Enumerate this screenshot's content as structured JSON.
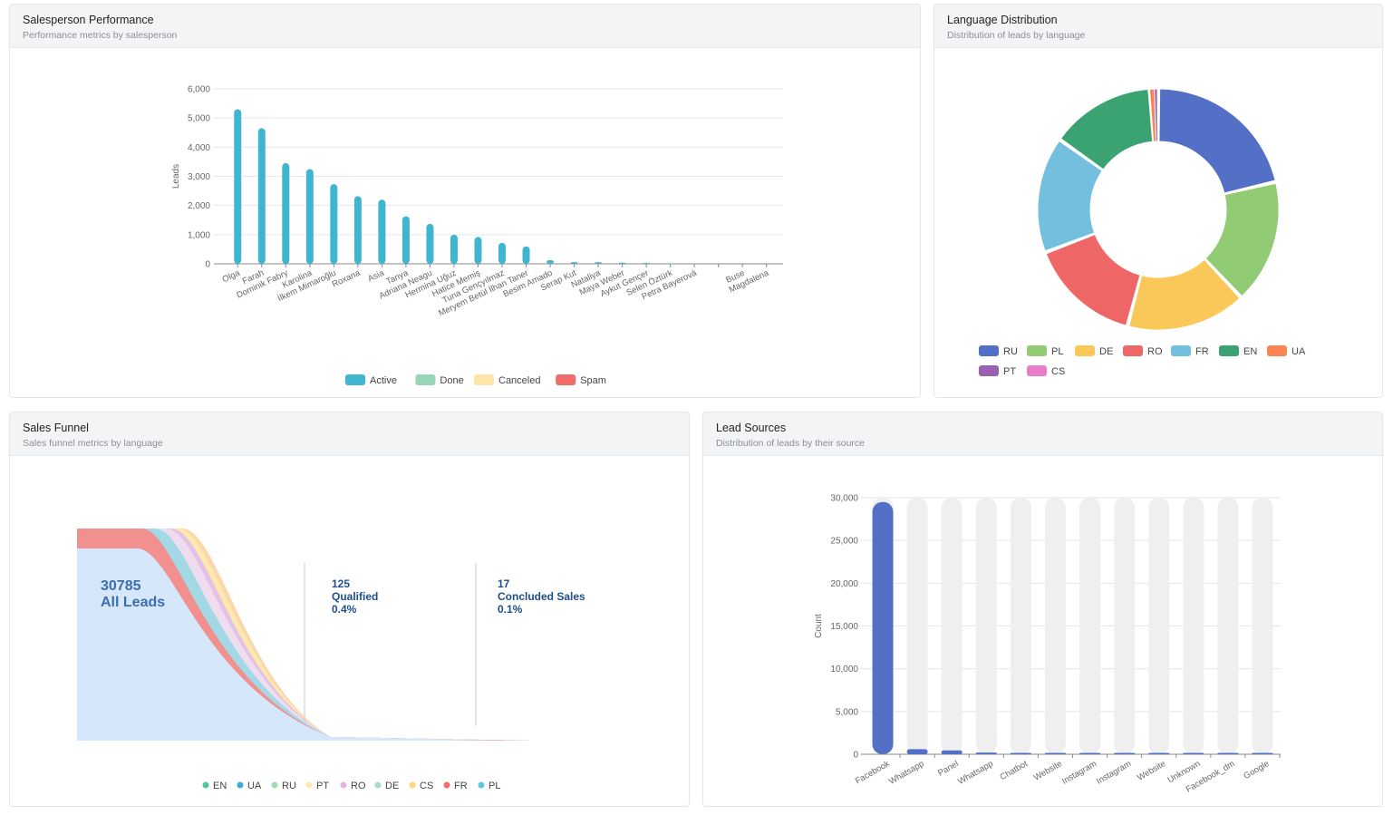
{
  "cards": {
    "salesperson": {
      "title": "Salesperson Performance",
      "subtitle": "Performance metrics by salesperson"
    },
    "language": {
      "title": "Language Distribution",
      "subtitle": "Distribution of leads by language"
    },
    "funnel": {
      "title": "Sales Funnel",
      "subtitle": "Sales funnel metrics by language"
    },
    "sources": {
      "title": "Lead Sources",
      "subtitle": "Distribution of leads by their source"
    }
  },
  "chart_data": [
    {
      "id": "salesperson",
      "type": "bar",
      "ylabel": "Leads",
      "xlabel": "",
      "ylim": [
        0,
        6000
      ],
      "yticks": [
        0,
        1000,
        2000,
        3000,
        4000,
        5000,
        6000
      ],
      "grid": true,
      "legend_position": "bottom",
      "categories": [
        "Olga",
        "Farah",
        "Dominik Fabry",
        "Karolina",
        "İlkem Mimaroğlu",
        "Roxana",
        "Asia",
        "Tanya",
        "Adriana Neagu",
        "Hermina Uğuz",
        "Hatice Memiş",
        "Tuna Gençyılmaz",
        "Meryem Betül İlhan Taner",
        "Besim Amado",
        "Serap Kut",
        "Nataliya",
        "Maya Weber",
        "Aykut Gençer",
        "Selen Öztürk",
        "Petra Bayerová",
        "",
        "Buse",
        "Magdalena"
      ],
      "series": [
        {
          "name": "Active",
          "color": "#3fb5cf",
          "values": [
            5300,
            4650,
            3450,
            3250,
            2730,
            2320,
            2200,
            1630,
            1370,
            1000,
            920,
            720,
            600,
            130,
            60,
            60,
            40,
            30,
            10,
            5,
            0,
            0,
            0
          ]
        },
        {
          "name": "Done",
          "color": "#97d5b8",
          "values": [
            0,
            0,
            0,
            0,
            0,
            0,
            0,
            0,
            0,
            0,
            0,
            0,
            0,
            0,
            0,
            0,
            0,
            0,
            0,
            0,
            0,
            0,
            0
          ]
        },
        {
          "name": "Canceled",
          "color": "#fde5a8",
          "values": [
            0,
            0,
            0,
            0,
            0,
            0,
            0,
            0,
            0,
            0,
            0,
            0,
            0,
            0,
            0,
            0,
            0,
            0,
            0,
            0,
            0,
            0,
            0
          ]
        },
        {
          "name": "Spam",
          "color": "#f26b6b",
          "values": [
            0,
            0,
            0,
            0,
            0,
            0,
            0,
            0,
            0,
            0,
            0,
            0,
            0,
            0,
            0,
            0,
            0,
            0,
            0,
            0,
            0,
            0,
            0
          ]
        }
      ]
    },
    {
      "id": "language",
      "type": "pie",
      "donut": true,
      "legend_position": "bottom",
      "slices": [
        {
          "label": "RU",
          "value": 20.5,
          "color": "#5470c6"
        },
        {
          "label": "PL",
          "value": 16.0,
          "color": "#91cc75"
        },
        {
          "label": "DE",
          "value": 15.5,
          "color": "#fac858"
        },
        {
          "label": "RO",
          "value": 14.5,
          "color": "#ee6666"
        },
        {
          "label": "FR",
          "value": 15.0,
          "color": "#73c0de"
        },
        {
          "label": "EN",
          "value": 13.5,
          "color": "#3ba272"
        },
        {
          "label": "UA",
          "value": 0.6,
          "color": "#fc8452"
        },
        {
          "label": "PT",
          "value": 0.4,
          "color": "#9a60b4"
        },
        {
          "label": "CS",
          "value": 0.1,
          "color": "#ea7ccc"
        }
      ]
    },
    {
      "id": "funnel",
      "type": "area",
      "subtype": "funnel",
      "stages": [
        {
          "value": "30785",
          "label": "All Leads",
          "percent": ""
        },
        {
          "value": "125",
          "label": "Qualified",
          "percent": "0.4%"
        },
        {
          "value": "17",
          "label": "Concluded Sales",
          "percent": "0.1%"
        }
      ],
      "legend_position": "bottom",
      "series": [
        {
          "name": "EN",
          "color": "#4fc3a1"
        },
        {
          "name": "UA",
          "color": "#3fa9d5"
        },
        {
          "name": "RU",
          "color": "#a3d9b1"
        },
        {
          "name": "PT",
          "color": "#fde8b0"
        },
        {
          "name": "RO",
          "color": "#e4b2e0"
        },
        {
          "name": "DE",
          "color": "#a8dcd1"
        },
        {
          "name": "CS",
          "color": "#fdd57e"
        },
        {
          "name": "FR",
          "color": "#f56b6b"
        },
        {
          "name": "PL",
          "color": "#5bc8d4"
        }
      ]
    },
    {
      "id": "sources",
      "type": "bar",
      "ylabel": "Count",
      "xlabel": "",
      "ylim": [
        0,
        30000
      ],
      "yticks": [
        0,
        5000,
        10000,
        15000,
        20000,
        25000,
        30000
      ],
      "grid": true,
      "background_bars": true,
      "bar_color": "#5470c6",
      "categories": [
        "Facebook",
        "Whatsapp",
        "Panel",
        "Whatsapp",
        "Chatbot",
        "Website",
        "Instagram",
        "Instagram",
        "Website",
        "Unknown",
        "Facebook_dm",
        "Google"
      ],
      "values": [
        29500,
        600,
        450,
        200,
        80,
        60,
        40,
        20,
        15,
        10,
        8,
        5
      ]
    }
  ]
}
